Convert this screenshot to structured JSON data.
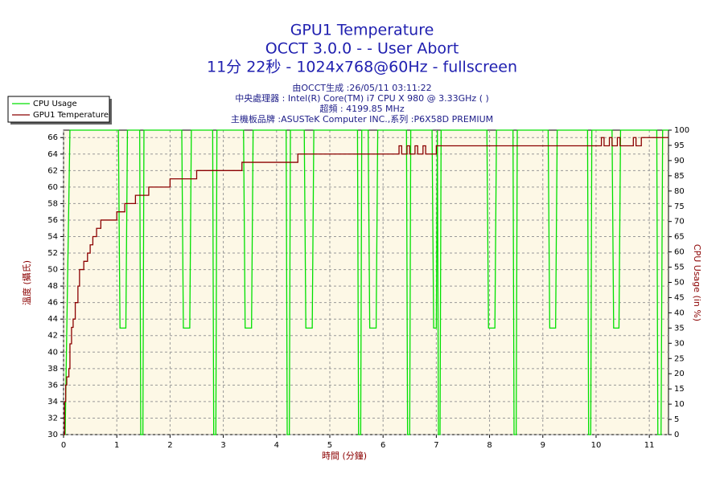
{
  "chart_data": {
    "type": "line",
    "title": "GPU1 Temperature",
    "subtitle": [
      "OCCT 3.0.0 -  - User Abort",
      "11分 22秒 - 1024x768@60Hz - fullscreen"
    ],
    "info": [
      "由OCCT生成 :26/05/11 03:11:22",
      "中央處理器 : Intel(R) Core(TM) i7 CPU X 980 @ 3.33GHz (  )",
      "超頻 : 4199.85 MHz",
      "主機板品牌 :ASUSTeK Computer INC.,系列 :P6X58D PREMIUM"
    ],
    "xlabel": "時間 (分鐘)",
    "ylabel": "溫度 (攝氏)",
    "y2label": "CPU Usage (in %)",
    "xlim": [
      0,
      11.36
    ],
    "ylim": [
      30,
      66.9
    ],
    "y2lim": [
      0,
      100
    ],
    "xticks": [
      0,
      1,
      2,
      3,
      4,
      5,
      6,
      7,
      8,
      9,
      10,
      11
    ],
    "yticks": [
      30,
      32,
      34,
      36,
      38,
      40,
      42,
      44,
      46,
      48,
      50,
      52,
      54,
      56,
      58,
      60,
      62,
      64,
      66
    ],
    "y2ticks": [
      0,
      5,
      10,
      15,
      20,
      25,
      30,
      35,
      40,
      45,
      50,
      55,
      60,
      65,
      70,
      75,
      80,
      85,
      90,
      95,
      100
    ],
    "grid": true,
    "legend": "upper left",
    "series": [
      {
        "name": "CPU Usage",
        "color": "#00e000",
        "axis": "y2",
        "x": [
          0,
          0.03,
          0.12,
          1.03,
          1.06,
          1.17,
          1.2,
          1.43,
          1.45,
          1.49,
          1.51,
          2.22,
          2.25,
          2.37,
          2.4,
          2.8,
          2.82,
          2.86,
          2.88,
          3.38,
          3.41,
          3.53,
          3.56,
          4.18,
          4.2,
          4.24,
          4.26,
          4.52,
          4.55,
          4.67,
          4.7,
          5.52,
          5.54,
          5.58,
          5.6,
          5.72,
          5.75,
          5.87,
          5.9,
          6.44,
          6.46,
          6.5,
          6.52,
          6.92,
          6.95,
          7.0,
          7.02,
          7.04,
          7.07,
          7.09,
          7.95,
          7.98,
          8.1,
          8.13,
          8.44,
          8.46,
          8.5,
          8.52,
          9.1,
          9.13,
          9.24,
          9.27,
          9.84,
          9.86,
          9.9,
          9.92,
          10.3,
          10.33,
          10.43,
          10.46,
          11.14,
          11.16,
          11.22,
          11.25,
          11.36
        ],
        "values": [
          0,
          0,
          100,
          100,
          35,
          35,
          100,
          100,
          0,
          0,
          100,
          100,
          35,
          35,
          100,
          100,
          0,
          0,
          100,
          100,
          35,
          35,
          100,
          100,
          0,
          0,
          100,
          100,
          35,
          35,
          100,
          100,
          0,
          0,
          100,
          100,
          35,
          35,
          100,
          100,
          0,
          0,
          100,
          100,
          35,
          35,
          100,
          0,
          0,
          100,
          100,
          35,
          35,
          100,
          100,
          0,
          0,
          100,
          100,
          35,
          35,
          100,
          100,
          0,
          0,
          100,
          100,
          35,
          35,
          100,
          100,
          0,
          0,
          100,
          100
        ]
      },
      {
        "name": "GPU1 Temperature",
        "color": "#8b0000",
        "step": true,
        "x": [
          0,
          0.02,
          0.04,
          0.06,
          0.1,
          0.12,
          0.15,
          0.18,
          0.22,
          0.27,
          0.3,
          0.38,
          0.45,
          0.5,
          0.55,
          0.62,
          0.7,
          0.85,
          1.0,
          1.15,
          1.35,
          1.6,
          2.0,
          2.5,
          3.35,
          4.4,
          6.3,
          6.35,
          6.45,
          6.5,
          6.6,
          6.65,
          6.75,
          6.8,
          6.9,
          7.0,
          10.1,
          10.15,
          10.25,
          10.3,
          10.4,
          10.45,
          10.7,
          10.75,
          10.85,
          11.36
        ],
        "values": [
          30,
          34,
          36,
          37,
          38,
          41,
          43,
          44,
          46,
          48,
          50,
          51,
          52,
          53,
          54,
          55,
          56,
          56,
          57,
          58,
          59,
          60,
          61,
          62,
          63,
          64,
          65,
          64,
          65,
          64,
          65,
          64,
          65,
          64,
          64,
          65,
          66,
          65,
          66,
          65,
          66,
          65,
          66,
          65,
          66,
          66
        ]
      }
    ]
  }
}
